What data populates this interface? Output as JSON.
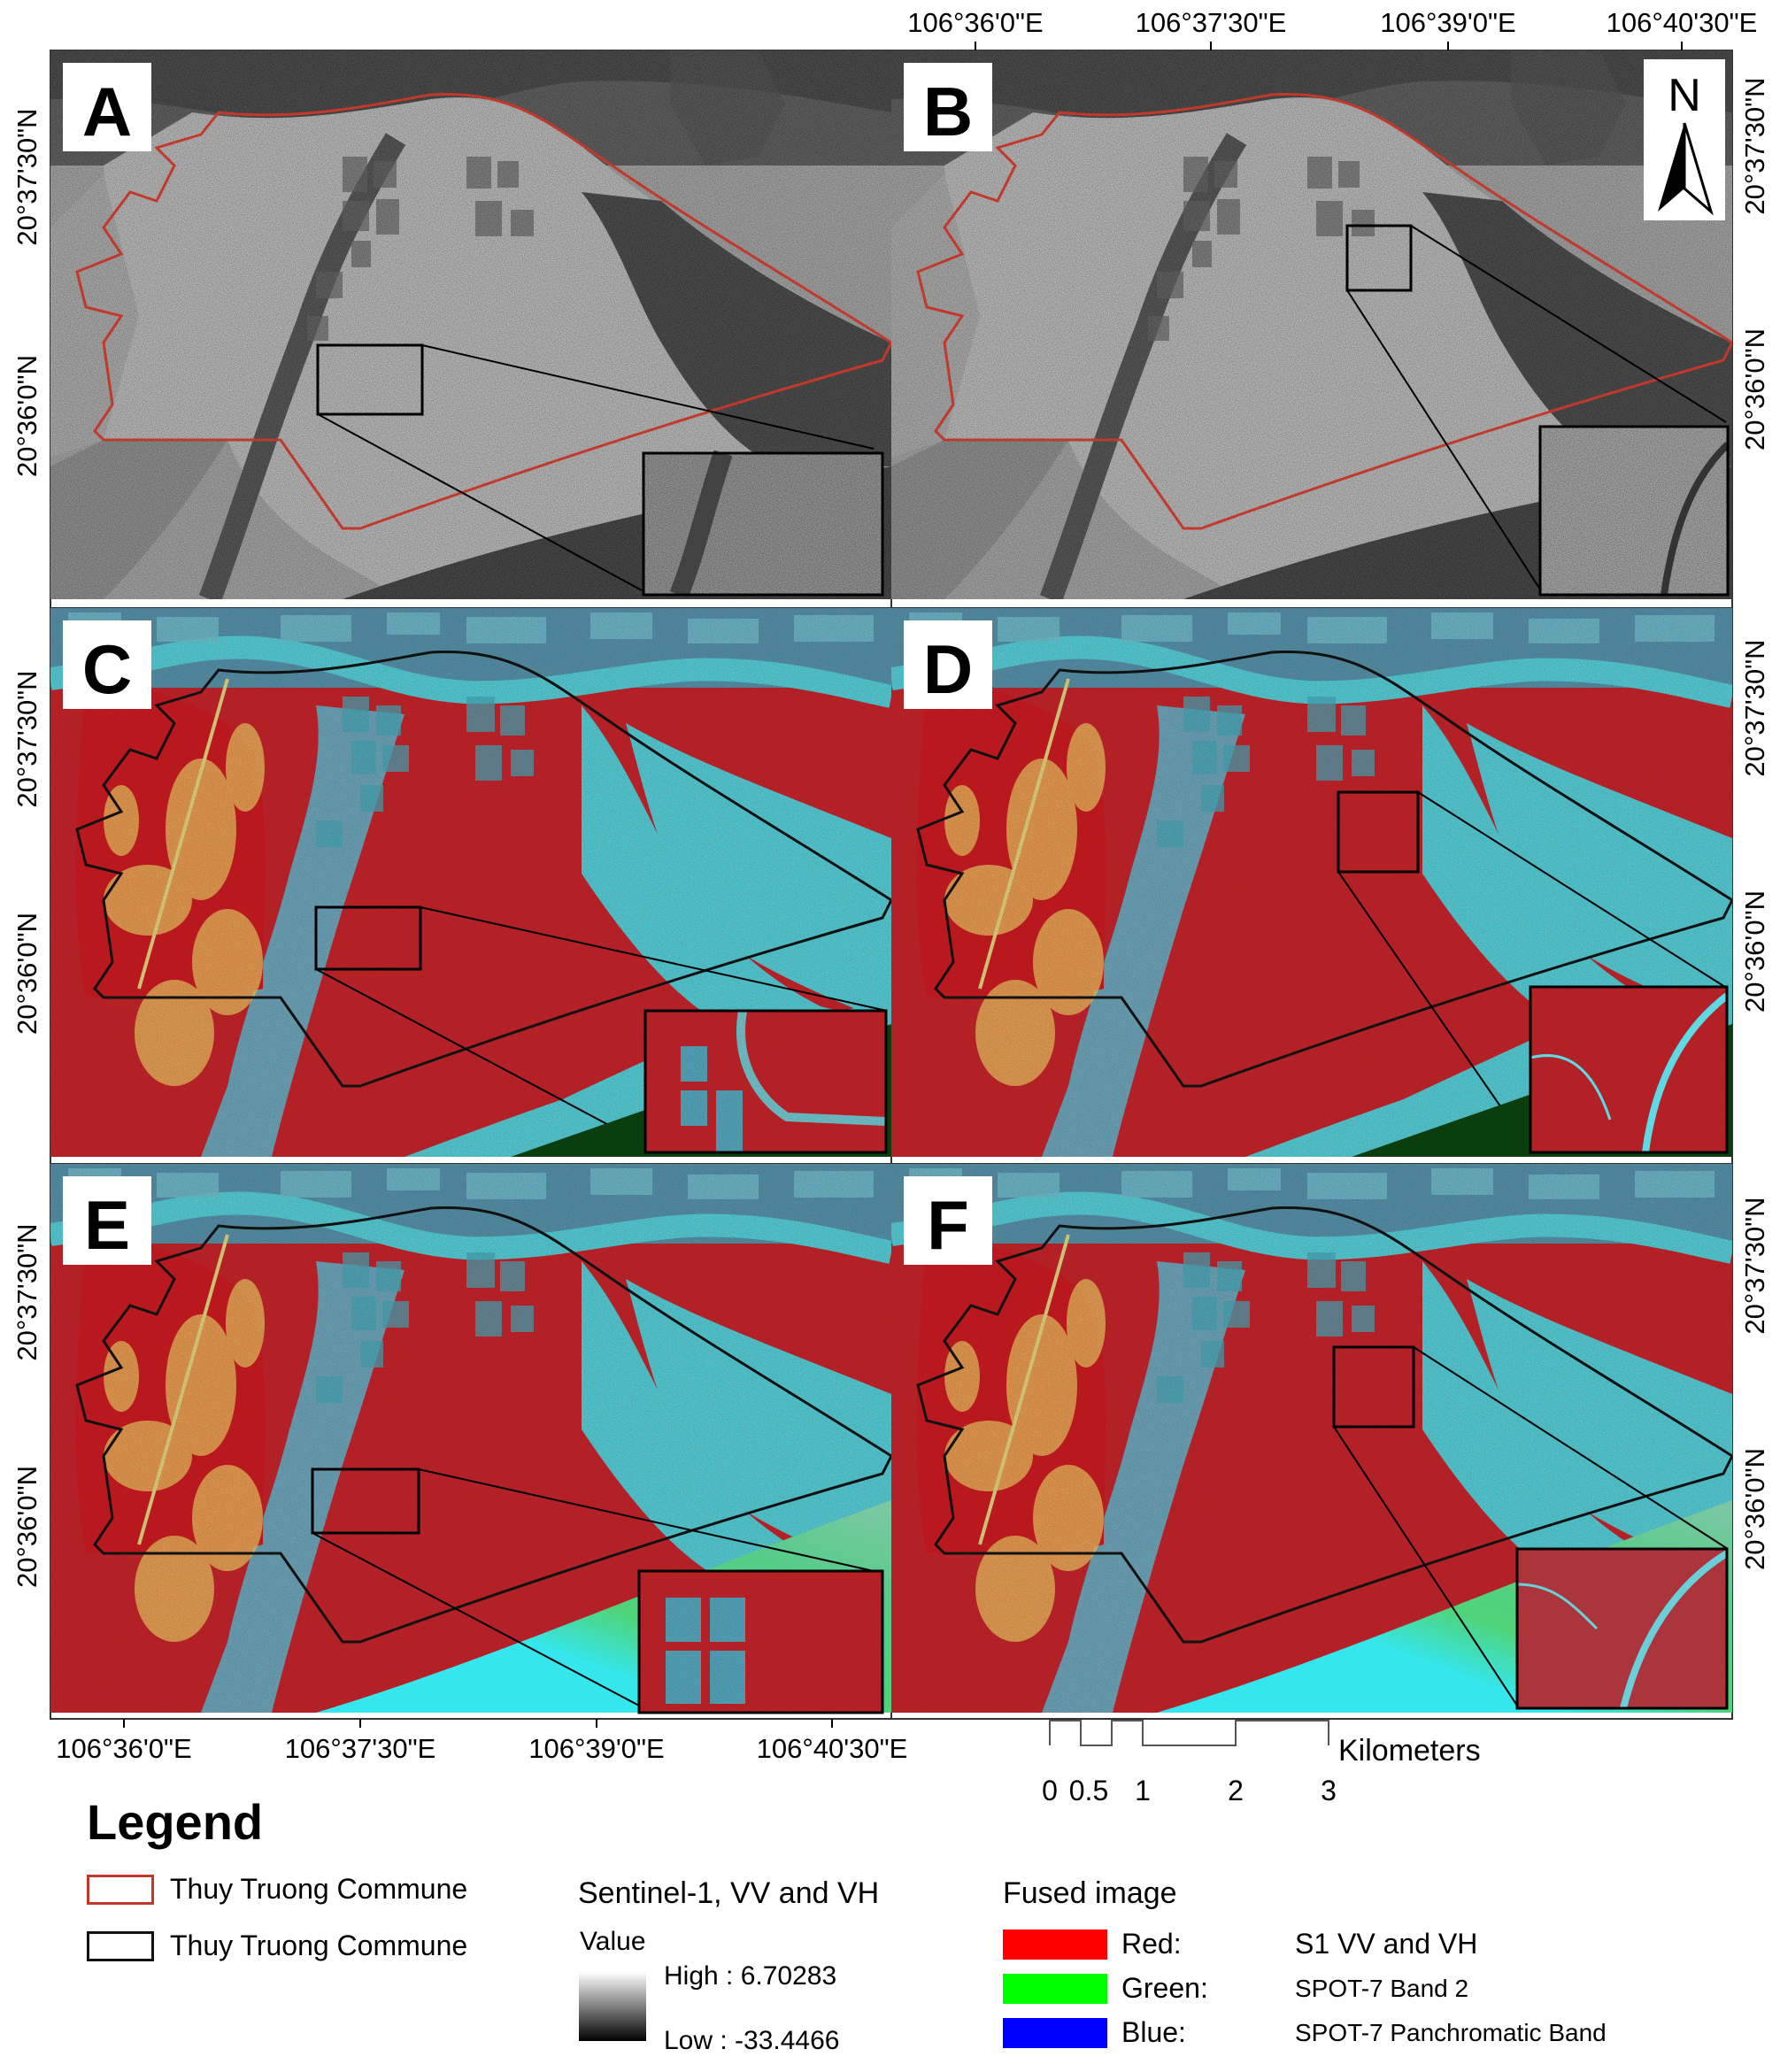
{
  "panels": [
    {
      "letter": "A",
      "type": "sar"
    },
    {
      "letter": "B",
      "type": "sar"
    },
    {
      "letter": "C",
      "type": "fused"
    },
    {
      "letter": "D",
      "type": "fused"
    },
    {
      "letter": "E",
      "type": "fused"
    },
    {
      "letter": "F",
      "type": "fused"
    }
  ],
  "lon_ticks": [
    "106°36'0\"E",
    "106°37'30\"E",
    "106°39'0\"E",
    "106°40'30\"E"
  ],
  "lat_ticks": [
    "20°37'30\"N",
    "20°36'0\"N"
  ],
  "north_arrow": {
    "label": "N"
  },
  "scale_bar": {
    "unit": "Kilometers",
    "ticks": [
      "0",
      "0.5",
      "1",
      "2",
      "3"
    ]
  },
  "legend": {
    "title": "Legend",
    "commune_red": "Thuy Truong Commune",
    "commune_black": "Thuy Truong Commune",
    "sentinel": {
      "title": "Sentinel-1, VV and VH",
      "value_label": "Value",
      "high": "High : 6.70283",
      "low": "Low : -33.4466"
    },
    "fused": {
      "title": "Fused image",
      "bands": [
        {
          "name": "Red:",
          "desc": "S1 VV and VH",
          "color": "#ff0000"
        },
        {
          "name": "Green:",
          "desc": "SPOT-7  Band 2",
          "color": "#00ff00"
        },
        {
          "name": "Blue:",
          "desc": "SPOT-7  Panchromatic Band",
          "color": "#0000ff"
        }
      ]
    }
  },
  "colors": {
    "commune_red": "#c0392b",
    "commune_black": "#111111",
    "water_cyan": "#35e6ec",
    "mangrove_red": "#c2232b"
  }
}
